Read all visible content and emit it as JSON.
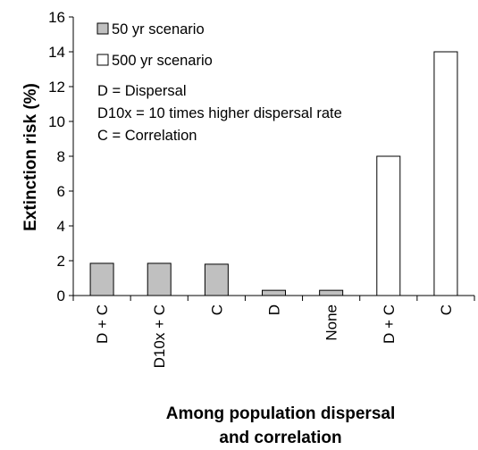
{
  "chart_data": {
    "type": "bar",
    "title": "",
    "ylabel": "Extinction risk (%)",
    "xlabel": [
      "Among population dispersal",
      "and correlation"
    ],
    "ylim": [
      0,
      16
    ],
    "yticks": [
      0,
      2,
      4,
      6,
      8,
      10,
      12,
      14,
      16
    ],
    "grid": false,
    "legend_position": "top-left",
    "categories": [
      "D + C",
      "D10x + C",
      "C",
      "D",
      "None",
      "D + C",
      "C"
    ],
    "series": [
      {
        "name": "50 yr scenario",
        "color": "#c0c0c0",
        "values": [
          1.85,
          1.85,
          1.8,
          0.3,
          0.3,
          null,
          null
        ]
      },
      {
        "name": "500 yr scenario",
        "color": "#ffffff",
        "values": [
          null,
          null,
          null,
          null,
          null,
          8.0,
          14.0
        ]
      }
    ],
    "notes": [
      "D = Dispersal",
      "D10x = 10 times higher dispersal rate",
      "C = Correlation"
    ]
  }
}
